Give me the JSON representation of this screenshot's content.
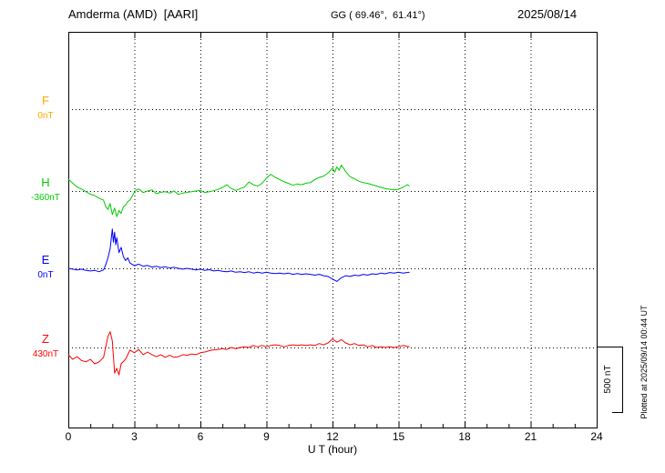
{
  "header": {
    "station": "Amderma (AMD)  [AARI]",
    "coords": "GG ( 69.46°,  61.41°)",
    "date": "2025/08/14"
  },
  "axes": {
    "x_label": "U T (hour)",
    "x_ticks": [
      0,
      3,
      6,
      9,
      12,
      15,
      18,
      21,
      24
    ],
    "x_range": [
      0,
      24
    ]
  },
  "scale_bar": {
    "label": "500 nT",
    "nT": 500
  },
  "footer_note": "Plotted at 2025/09/14 00:44 UT",
  "chart_data": {
    "type": "line",
    "title": "Amderma (AMD) [AARI] magnetogram 2025/08/14",
    "xlabel": "U T (hour)",
    "x_range_hours": [
      0,
      24
    ],
    "data_end_hour": 15.5,
    "grid": "dotted",
    "scale_bar_nT": 500,
    "series": [
      {
        "name": "F",
        "color": "#ffa500",
        "baseline_label": "0nT",
        "baseline_nT": 0,
        "points": []
      },
      {
        "name": "H",
        "color": "#00cc00",
        "baseline_label": "-360nT",
        "baseline_nT": -360,
        "points": [
          [
            0,
            -270
          ],
          [
            0.2,
            -300
          ],
          [
            0.4,
            -330
          ],
          [
            0.6,
            -345
          ],
          [
            0.8,
            -365
          ],
          [
            1,
            -385
          ],
          [
            1.2,
            -395
          ],
          [
            1.4,
            -415
          ],
          [
            1.6,
            -430
          ],
          [
            1.7,
            -480
          ],
          [
            1.8,
            -500
          ],
          [
            1.9,
            -455
          ],
          [
            2,
            -540
          ],
          [
            2.1,
            -490
          ],
          [
            2.2,
            -555
          ],
          [
            2.3,
            -510
          ],
          [
            2.4,
            -530
          ],
          [
            2.5,
            -480
          ],
          [
            2.6,
            -468
          ],
          [
            2.7,
            -440
          ],
          [
            2.8,
            -428
          ],
          [
            2.9,
            -400
          ],
          [
            3,
            -368
          ],
          [
            3.1,
            -350
          ],
          [
            3.2,
            -345
          ],
          [
            3.4,
            -372
          ],
          [
            3.6,
            -360
          ],
          [
            3.8,
            -352
          ],
          [
            4,
            -380
          ],
          [
            4.2,
            -370
          ],
          [
            4.4,
            -365
          ],
          [
            4.6,
            -376
          ],
          [
            4.8,
            -360
          ],
          [
            5,
            -386
          ],
          [
            5.2,
            -375
          ],
          [
            5.4,
            -370
          ],
          [
            5.6,
            -365
          ],
          [
            5.8,
            -360
          ],
          [
            6,
            -355
          ],
          [
            6.2,
            -372
          ],
          [
            6.5,
            -362
          ],
          [
            6.8,
            -348
          ],
          [
            7,
            -332
          ],
          [
            7.2,
            -312
          ],
          [
            7.4,
            -340
          ],
          [
            7.6,
            -356
          ],
          [
            7.8,
            -342
          ],
          [
            8,
            -330
          ],
          [
            8.2,
            -292
          ],
          [
            8.4,
            -312
          ],
          [
            8.6,
            -322
          ],
          [
            8.8,
            -302
          ],
          [
            9,
            -262
          ],
          [
            9.2,
            -232
          ],
          [
            9.4,
            -256
          ],
          [
            9.6,
            -272
          ],
          [
            9.8,
            -290
          ],
          [
            10,
            -302
          ],
          [
            10.2,
            -316
          ],
          [
            10.4,
            -306
          ],
          [
            10.6,
            -312
          ],
          [
            10.8,
            -300
          ],
          [
            11,
            -296
          ],
          [
            11.2,
            -272
          ],
          [
            11.4,
            -256
          ],
          [
            11.6,
            -246
          ],
          [
            11.8,
            -222
          ],
          [
            12,
            -186
          ],
          [
            12.1,
            -216
          ],
          [
            12.2,
            -176
          ],
          [
            12.3,
            -202
          ],
          [
            12.4,
            -162
          ],
          [
            12.5,
            -186
          ],
          [
            12.6,
            -212
          ],
          [
            12.8,
            -250
          ],
          [
            13,
            -266
          ],
          [
            13.2,
            -286
          ],
          [
            13.4,
            -296
          ],
          [
            13.6,
            -302
          ],
          [
            13.8,
            -312
          ],
          [
            14,
            -322
          ],
          [
            14.2,
            -332
          ],
          [
            14.4,
            -342
          ],
          [
            14.6,
            -346
          ],
          [
            14.8,
            -352
          ],
          [
            15,
            -346
          ],
          [
            15.2,
            -332
          ],
          [
            15.4,
            -312
          ],
          [
            15.5,
            -322
          ]
        ]
      },
      {
        "name": "E",
        "color": "#0000ff",
        "baseline_label": "0nT",
        "baseline_nT": 0,
        "points": [
          [
            0,
            0
          ],
          [
            0.2,
            -6
          ],
          [
            0.4,
            -12
          ],
          [
            0.6,
            -6
          ],
          [
            0.8,
            -16
          ],
          [
            1,
            -20
          ],
          [
            1.2,
            -16
          ],
          [
            1.4,
            -26
          ],
          [
            1.6,
            -12
          ],
          [
            1.7,
            28
          ],
          [
            1.8,
            80
          ],
          [
            1.9,
            150
          ],
          [
            2,
            300
          ],
          [
            2.05,
            200
          ],
          [
            2.1,
            275
          ],
          [
            2.15,
            180
          ],
          [
            2.2,
            235
          ],
          [
            2.3,
            120
          ],
          [
            2.4,
            160
          ],
          [
            2.5,
            90
          ],
          [
            2.6,
            60
          ],
          [
            2.7,
            80
          ],
          [
            2.8,
            40
          ],
          [
            3,
            20
          ],
          [
            3.2,
            32
          ],
          [
            3.4,
            16
          ],
          [
            3.6,
            22
          ],
          [
            3.8,
            10
          ],
          [
            4,
            16
          ],
          [
            4.2,
            6
          ],
          [
            4.4,
            12
          ],
          [
            4.6,
            2
          ],
          [
            4.8,
            8
          ],
          [
            5,
            0
          ],
          [
            5.2,
            -6
          ],
          [
            5.4,
            0
          ],
          [
            5.6,
            -6
          ],
          [
            5.8,
            -12
          ],
          [
            6,
            -6
          ],
          [
            6.2,
            -16
          ],
          [
            6.4,
            -10
          ],
          [
            6.6,
            -20
          ],
          [
            6.8,
            -16
          ],
          [
            7,
            -22
          ],
          [
            7.2,
            -26
          ],
          [
            7.4,
            -20
          ],
          [
            7.6,
            -30
          ],
          [
            7.8,
            -26
          ],
          [
            8,
            -32
          ],
          [
            8.2,
            -26
          ],
          [
            8.4,
            -36
          ],
          [
            8.6,
            -30
          ],
          [
            8.8,
            -36
          ],
          [
            9,
            -30
          ],
          [
            9.2,
            -36
          ],
          [
            9.4,
            -40
          ],
          [
            9.6,
            -36
          ],
          [
            9.8,
            -42
          ],
          [
            10,
            -36
          ],
          [
            10.2,
            -46
          ],
          [
            10.4,
            -40
          ],
          [
            10.6,
            -46
          ],
          [
            10.8,
            -42
          ],
          [
            11,
            -46
          ],
          [
            11.2,
            -52
          ],
          [
            11.4,
            -46
          ],
          [
            11.6,
            -56
          ],
          [
            11.8,
            -62
          ],
          [
            12,
            -82
          ],
          [
            12.2,
            -100
          ],
          [
            12.4,
            -72
          ],
          [
            12.6,
            -56
          ],
          [
            12.8,
            -62
          ],
          [
            13,
            -52
          ],
          [
            13.2,
            -56
          ],
          [
            13.4,
            -46
          ],
          [
            13.6,
            -52
          ],
          [
            13.8,
            -42
          ],
          [
            14,
            -46
          ],
          [
            14.2,
            -36
          ],
          [
            14.4,
            -42
          ],
          [
            14.6,
            -32
          ],
          [
            14.8,
            -36
          ],
          [
            15,
            -30
          ],
          [
            15.2,
            -36
          ],
          [
            15.5,
            -30
          ]
        ]
      },
      {
        "name": "Z",
        "color": "#ff0000",
        "baseline_label": "430nT",
        "baseline_nT": 430,
        "points": [
          [
            0,
            375
          ],
          [
            0.2,
            340
          ],
          [
            0.4,
            360
          ],
          [
            0.6,
            330
          ],
          [
            0.8,
            320
          ],
          [
            1,
            340
          ],
          [
            1.2,
            305
          ],
          [
            1.4,
            320
          ],
          [
            1.6,
            355
          ],
          [
            1.8,
            515
          ],
          [
            1.9,
            550
          ],
          [
            2,
            480
          ],
          [
            2.1,
            235
          ],
          [
            2.2,
            270
          ],
          [
            2.3,
            220
          ],
          [
            2.4,
            305
          ],
          [
            2.6,
            340
          ],
          [
            2.8,
            410
          ],
          [
            3,
            390
          ],
          [
            3.2,
            415
          ],
          [
            3.4,
            375
          ],
          [
            3.6,
            395
          ],
          [
            3.8,
            375
          ],
          [
            4,
            360
          ],
          [
            4.2,
            375
          ],
          [
            4.4,
            355
          ],
          [
            4.6,
            370
          ],
          [
            4.8,
            355
          ],
          [
            5,
            360
          ],
          [
            5.2,
            375
          ],
          [
            5.4,
            370
          ],
          [
            5.6,
            380
          ],
          [
            5.8,
            375
          ],
          [
            6,
            390
          ],
          [
            6.2,
            395
          ],
          [
            6.5,
            410
          ],
          [
            6.8,
            415
          ],
          [
            7,
            420
          ],
          [
            7.2,
            415
          ],
          [
            7.4,
            430
          ],
          [
            7.6,
            420
          ],
          [
            7.8,
            430
          ],
          [
            8,
            435
          ],
          [
            8.2,
            430
          ],
          [
            8.4,
            445
          ],
          [
            8.6,
            435
          ],
          [
            8.8,
            445
          ],
          [
            9,
            435
          ],
          [
            9.2,
            445
          ],
          [
            9.4,
            450
          ],
          [
            9.6,
            445
          ],
          [
            9.8,
            435
          ],
          [
            10,
            445
          ],
          [
            10.2,
            450
          ],
          [
            10.4,
            445
          ],
          [
            10.6,
            450
          ],
          [
            10.8,
            445
          ],
          [
            11,
            450
          ],
          [
            11.2,
            445
          ],
          [
            11.4,
            460
          ],
          [
            11.6,
            450
          ],
          [
            11.8,
            465
          ],
          [
            12,
            495
          ],
          [
            12.2,
            470
          ],
          [
            12.4,
            490
          ],
          [
            12.6,
            465
          ],
          [
            12.8,
            450
          ],
          [
            13,
            460
          ],
          [
            13.2,
            445
          ],
          [
            13.4,
            450
          ],
          [
            13.6,
            435
          ],
          [
            13.8,
            445
          ],
          [
            14,
            430
          ],
          [
            14.2,
            435
          ],
          [
            14.4,
            430
          ],
          [
            14.6,
            435
          ],
          [
            14.8,
            430
          ],
          [
            15,
            435
          ],
          [
            15.2,
            445
          ],
          [
            15.5,
            435
          ]
        ]
      }
    ]
  }
}
